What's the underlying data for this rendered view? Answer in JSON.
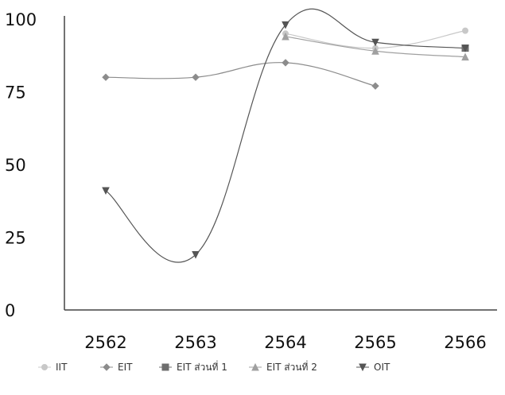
{
  "chart_data": {
    "type": "line",
    "categories": [
      "2562",
      "2563",
      "2564",
      "2565",
      "2566"
    ],
    "ylim": [
      0,
      100
    ],
    "yticks": [
      "0",
      "25",
      "50",
      "75",
      "100"
    ],
    "grid": false,
    "legend_position": "bottom",
    "series": [
      {
        "name": "IIT",
        "marker": "circle",
        "color": "#c8c8c8",
        "values": [
          null,
          null,
          95,
          90,
          96
        ]
      },
      {
        "name": "EIT",
        "marker": "diamond",
        "color": "#8c8c8c",
        "values": [
          80,
          80,
          85,
          77,
          null
        ]
      },
      {
        "name": "EIT ส่วนที่ 1",
        "marker": "square",
        "color": "#6e6e6e",
        "values": [
          null,
          null,
          null,
          null,
          90
        ]
      },
      {
        "name": "EIT ส่วนที่ 2",
        "marker": "triangle",
        "color": "#a0a0a0",
        "values": [
          null,
          null,
          94,
          89,
          87
        ]
      },
      {
        "name": "OIT",
        "marker": "triangle-down",
        "color": "#555555",
        "values": [
          41,
          19,
          98,
          92,
          90
        ]
      }
    ]
  }
}
